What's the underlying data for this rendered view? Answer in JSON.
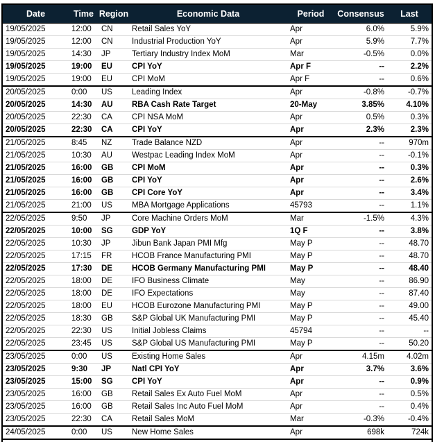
{
  "colors": {
    "header_background": "#0c2132",
    "header_text": "#ffffff",
    "row_divider": "#d9d9d9",
    "group_divider": "#000000",
    "table_border": "#000000",
    "body_text": "#000000"
  },
  "chart_data": {
    "type": "table",
    "columns": [
      "Date",
      "Time",
      "Region",
      "Economic Data",
      "Period",
      "Consensus",
      "Last"
    ],
    "rows": [
      {
        "date": "19/05/2025",
        "time": "12:00",
        "region": "CN",
        "name": "Retail Sales YoY",
        "period": "Apr",
        "consensus": "6.0%",
        "last": "5.9%",
        "bold": false,
        "group_end": false
      },
      {
        "date": "19/05/2025",
        "time": "12:00",
        "region": "CN",
        "name": "Industrial Production YoY",
        "period": "Apr",
        "consensus": "5.9%",
        "last": "7.7%",
        "bold": false,
        "group_end": false
      },
      {
        "date": "19/05/2025",
        "time": "14:30",
        "region": "JP",
        "name": "Tertiary Industry Index MoM",
        "period": "Mar",
        "consensus": "-0.5%",
        "last": "0.0%",
        "bold": false,
        "group_end": false
      },
      {
        "date": "19/05/2025",
        "time": "19:00",
        "region": "EU",
        "name": "CPI YoY",
        "period": "Apr F",
        "consensus": "--",
        "last": "2.2%",
        "bold": true,
        "group_end": false
      },
      {
        "date": "19/05/2025",
        "time": "19:00",
        "region": "EU",
        "name": "CPI MoM",
        "period": "Apr F",
        "consensus": "--",
        "last": "0.6%",
        "bold": false,
        "group_end": true
      },
      {
        "date": "20/05/2025",
        "time": "0:00",
        "region": "US",
        "name": "Leading Index",
        "period": "Apr",
        "consensus": "-0.8%",
        "last": "-0.7%",
        "bold": false,
        "group_end": false
      },
      {
        "date": "20/05/2025",
        "time": "14:30",
        "region": "AU",
        "name": "RBA Cash Rate Target",
        "period": "20-May",
        "consensus": "3.85%",
        "last": "4.10%",
        "bold": true,
        "group_end": false
      },
      {
        "date": "20/05/2025",
        "time": "22:30",
        "region": "CA",
        "name": "CPI NSA MoM",
        "period": "Apr",
        "consensus": "0.5%",
        "last": "0.3%",
        "bold": false,
        "group_end": false
      },
      {
        "date": "20/05/2025",
        "time": "22:30",
        "region": "CA",
        "name": "CPI YoY",
        "period": "Apr",
        "consensus": "2.3%",
        "last": "2.3%",
        "bold": true,
        "group_end": true
      },
      {
        "date": "21/05/2025",
        "time": "8:45",
        "region": "NZ",
        "name": "Trade Balance NZD",
        "period": "Apr",
        "consensus": "--",
        "last": "970m",
        "bold": false,
        "group_end": false
      },
      {
        "date": "21/05/2025",
        "time": "10:30",
        "region": "AU",
        "name": "Westpac Leading Index MoM",
        "period": "Apr",
        "consensus": "--",
        "last": "-0.1%",
        "bold": false,
        "group_end": false
      },
      {
        "date": "21/05/2025",
        "time": "16:00",
        "region": "GB",
        "name": "CPI MoM",
        "period": "Apr",
        "consensus": "--",
        "last": "0.3%",
        "bold": true,
        "group_end": false
      },
      {
        "date": "21/05/2025",
        "time": "16:00",
        "region": "GB",
        "name": "CPI YoY",
        "period": "Apr",
        "consensus": "--",
        "last": "2.6%",
        "bold": true,
        "group_end": false
      },
      {
        "date": "21/05/2025",
        "time": "16:00",
        "region": "GB",
        "name": "CPI Core YoY",
        "period": "Apr",
        "consensus": "--",
        "last": "3.4%",
        "bold": true,
        "group_end": false
      },
      {
        "date": "21/05/2025",
        "time": "21:00",
        "region": "US",
        "name": "MBA Mortgage Applications",
        "period": "45793",
        "consensus": "--",
        "last": "1.1%",
        "bold": false,
        "group_end": true
      },
      {
        "date": "22/05/2025",
        "time": "9:50",
        "region": "JP",
        "name": "Core Machine Orders MoM",
        "period": "Mar",
        "consensus": "-1.5%",
        "last": "4.3%",
        "bold": false,
        "group_end": false
      },
      {
        "date": "22/05/2025",
        "time": "10:00",
        "region": "SG",
        "name": "GDP YoY",
        "period": "1Q F",
        "consensus": "--",
        "last": "3.8%",
        "bold": true,
        "group_end": false
      },
      {
        "date": "22/05/2025",
        "time": "10:30",
        "region": "JP",
        "name": "Jibun Bank Japan PMI Mfg",
        "period": "May P",
        "consensus": "--",
        "last": "48.70",
        "bold": false,
        "group_end": false
      },
      {
        "date": "22/05/2025",
        "time": "17:15",
        "region": "FR",
        "name": "HCOB France Manufacturing PMI",
        "period": "May P",
        "consensus": "--",
        "last": "48.70",
        "bold": false,
        "group_end": false
      },
      {
        "date": "22/05/2025",
        "time": "17:30",
        "region": "DE",
        "name": "HCOB Germany Manufacturing PMI",
        "period": "May P",
        "consensus": "--",
        "last": "48.40",
        "bold": true,
        "group_end": false
      },
      {
        "date": "22/05/2025",
        "time": "18:00",
        "region": "DE",
        "name": "IFO Business Climate",
        "period": "May",
        "consensus": "--",
        "last": "86.90",
        "bold": false,
        "group_end": false
      },
      {
        "date": "22/05/2025",
        "time": "18:00",
        "region": "DE",
        "name": "IFO Expectations",
        "period": "May",
        "consensus": "--",
        "last": "87.40",
        "bold": false,
        "group_end": false
      },
      {
        "date": "22/05/2025",
        "time": "18:00",
        "region": "EU",
        "name": "HCOB Eurozone Manufacturing PMI",
        "period": "May P",
        "consensus": "--",
        "last": "49.00",
        "bold": false,
        "group_end": false
      },
      {
        "date": "22/05/2025",
        "time": "18:30",
        "region": "GB",
        "name": "S&P Global UK Manufacturing PMI",
        "period": "May P",
        "consensus": "--",
        "last": "45.40",
        "bold": false,
        "group_end": false
      },
      {
        "date": "22/05/2025",
        "time": "22:30",
        "region": "US",
        "name": "Initial Jobless Claims",
        "period": "45794",
        "consensus": "--",
        "last": "--",
        "bold": false,
        "group_end": false
      },
      {
        "date": "22/05/2025",
        "time": "23:45",
        "region": "US",
        "name": "S&P Global US Manufacturing PMI",
        "period": "May P",
        "consensus": "--",
        "last": "50.20",
        "bold": false,
        "group_end": true
      },
      {
        "date": "23/05/2025",
        "time": "0:00",
        "region": "US",
        "name": "Existing Home Sales",
        "period": "Apr",
        "consensus": "4.15m",
        "last": "4.02m",
        "bold": false,
        "group_end": false
      },
      {
        "date": "23/05/2025",
        "time": "9:30",
        "region": "JP",
        "name": "Natl CPI YoY",
        "period": "Apr",
        "consensus": "3.7%",
        "last": "3.6%",
        "bold": true,
        "group_end": false
      },
      {
        "date": "23/05/2025",
        "time": "15:00",
        "region": "SG",
        "name": "CPI YoY",
        "period": "Apr",
        "consensus": "--",
        "last": "0.9%",
        "bold": true,
        "group_end": false
      },
      {
        "date": "23/05/2025",
        "time": "16:00",
        "region": "GB",
        "name": "Retail Sales Ex Auto Fuel MoM",
        "period": "Apr",
        "consensus": "--",
        "last": "0.5%",
        "bold": false,
        "group_end": false
      },
      {
        "date": "23/05/2025",
        "time": "16:00",
        "region": "GB",
        "name": "Retail Sales Inc Auto Fuel MoM",
        "period": "Apr",
        "consensus": "--",
        "last": "0.4%",
        "bold": false,
        "group_end": false
      },
      {
        "date": "23/05/2025",
        "time": "22:30",
        "region": "CA",
        "name": "Retail Sales MoM",
        "period": "Mar",
        "consensus": "-0.3%",
        "last": "-0.4%",
        "bold": false,
        "group_end": true
      },
      {
        "date": "24/05/2025",
        "time": "0:00",
        "region": "US",
        "name": "New Home Sales",
        "period": "Apr",
        "consensus": "698k",
        "last": "724k",
        "bold": false,
        "group_end": true
      }
    ]
  }
}
